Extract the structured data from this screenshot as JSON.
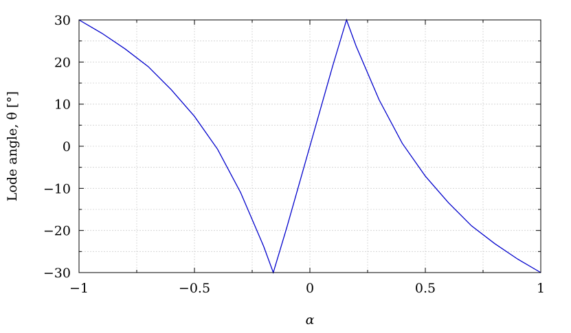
{
  "chart_data": {
    "type": "line",
    "xlabel": "α",
    "ylabel": "Lode angle, θ [°]",
    "xlim": [
      -1,
      1
    ],
    "ylim": [
      -30,
      30
    ],
    "grid": true,
    "x_ticks": [
      -1,
      -0.5,
      0,
      0.5,
      1
    ],
    "x_tick_labels": [
      "−1",
      "−0.5",
      "0",
      "0.5",
      "1"
    ],
    "y_ticks": [
      30,
      20,
      10,
      0,
      -10,
      -20,
      -30
    ],
    "y_tick_labels": [
      "30",
      "20",
      "10",
      "0",
      "−10",
      "−20",
      "−30"
    ],
    "series": [
      {
        "color": "#0000cc",
        "x": [
          -1,
          -0.9,
          -0.8,
          -0.7,
          -0.6,
          -0.5,
          -0.4,
          -0.3,
          -0.2,
          -0.1586,
          -0.1,
          0,
          0.1,
          0.1586,
          0.2,
          0.3,
          0.4,
          0.5,
          0.6,
          0.7,
          0.8,
          0.9,
          1
        ],
        "y": [
          30,
          26.8,
          23.1,
          18.9,
          13.4,
          7.1,
          -0.7,
          -11.0,
          -23.8,
          -30,
          -19.3,
          0,
          19.3,
          30,
          23.8,
          11.0,
          0.7,
          -7.1,
          -13.4,
          -18.9,
          -23.1,
          -26.8,
          -30
        ]
      }
    ]
  }
}
